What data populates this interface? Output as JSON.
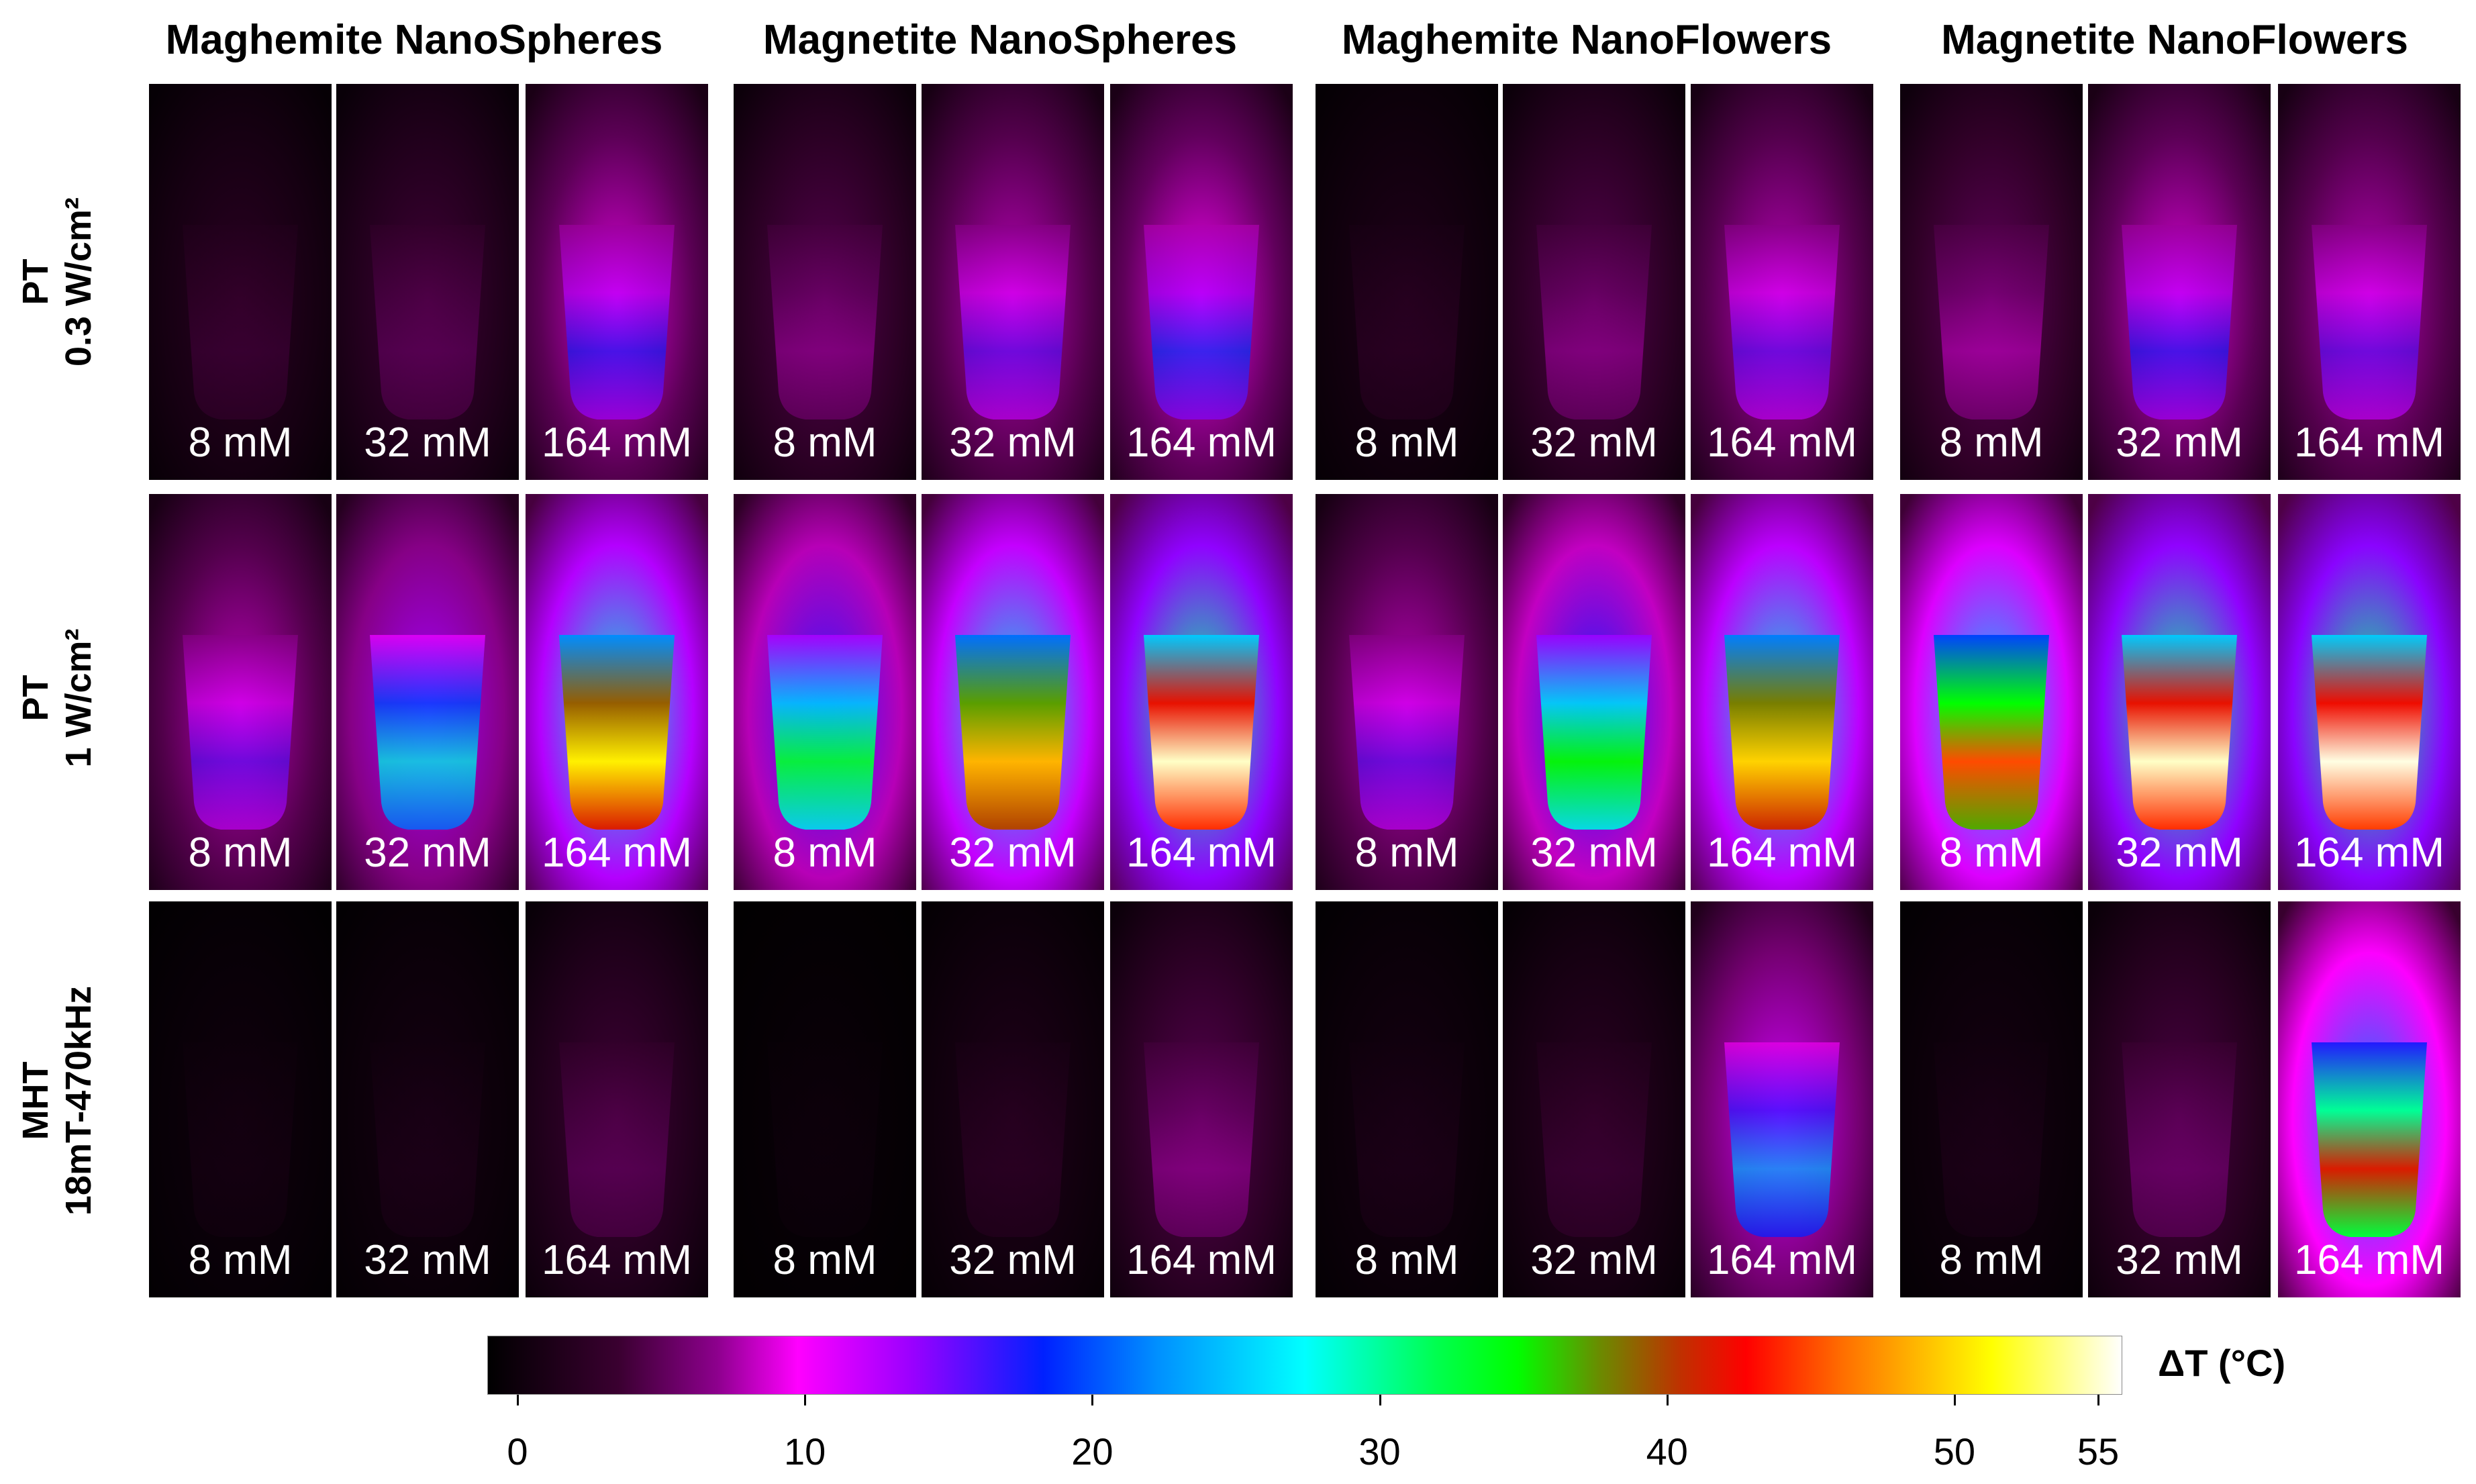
{
  "figure": {
    "columns": [
      {
        "title": "Maghemite NanoSpheres"
      },
      {
        "title": "Magnetite NanoSpheres"
      },
      {
        "title": "Maghemite NanoFlowers"
      },
      {
        "title": "Magnetite NanoFlowers"
      }
    ],
    "rows": [
      {
        "label_line1": "PT",
        "label_line2": "0.3 W/cm²"
      },
      {
        "label_line1": "PT",
        "label_line2": "1 W/cm²"
      },
      {
        "label_line1": "MHT",
        "label_line2": "18mT-470kHz"
      }
    ],
    "concentrations": [
      "8 mM",
      "32 mM",
      "164 mM"
    ],
    "colorbar": {
      "title": "ΔT (°C)",
      "ticks": [
        "0",
        "10",
        "20",
        "30",
        "40",
        "50",
        "55"
      ],
      "colors": {
        "c0": "#000000",
        "c1": "#3a0030",
        "c2": "#8c008c",
        "c3": "#ff00ff",
        "c4": "#9a00ff",
        "c5": "#0020ff",
        "c6": "#00ffff",
        "c7": "#00ff00",
        "c8": "#ff0000",
        "c9": "#ffa500",
        "c10": "#ffff00",
        "c11": "#ffffff"
      }
    }
  }
}
